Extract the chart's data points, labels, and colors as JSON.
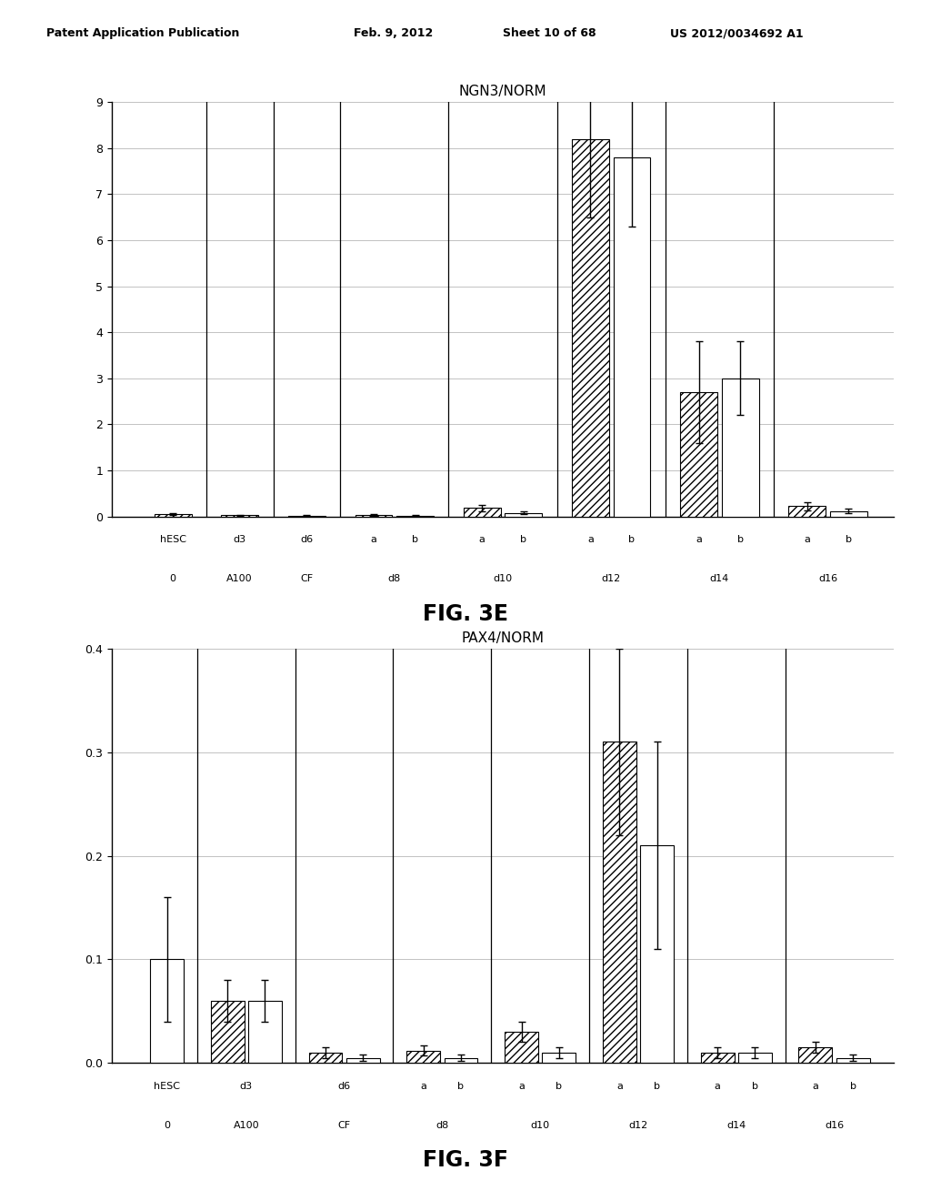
{
  "fig3e": {
    "title": "NGN3/NORM",
    "ylim": [
      0,
      9
    ],
    "yticks": [
      0,
      1,
      2,
      3,
      4,
      5,
      6,
      7,
      8,
      9
    ],
    "groups": [
      {
        "top_label": "hESC",
        "bot_label": "0",
        "n_bars": 1,
        "vals": [
          0.05
        ],
        "errs": [
          0.02
        ],
        "hatches": [
          true
        ]
      },
      {
        "top_label": "d3",
        "bot_label": "A100",
        "n_bars": 1,
        "vals": [
          0.03
        ],
        "errs": [
          0.01
        ],
        "hatches": [
          true
        ]
      },
      {
        "top_label": "d6",
        "bot_label": "CF",
        "n_bars": 1,
        "vals": [
          0.02
        ],
        "errs": [
          0.01
        ],
        "hatches": [
          true
        ]
      },
      {
        "top_label": "ab",
        "bot_label": "d8",
        "n_bars": 2,
        "vals": [
          0.03,
          0.02
        ],
        "errs": [
          0.02,
          0.01
        ],
        "hatches": [
          true,
          false
        ]
      },
      {
        "top_label": "ab",
        "bot_label": "d10",
        "n_bars": 2,
        "vals": [
          0.18,
          0.08
        ],
        "errs": [
          0.06,
          0.03
        ],
        "hatches": [
          true,
          false
        ]
      },
      {
        "top_label": "ab",
        "bot_label": "d12",
        "n_bars": 2,
        "vals": [
          8.2,
          7.8
        ],
        "errs": [
          1.7,
          1.5
        ],
        "hatches": [
          true,
          false
        ]
      },
      {
        "top_label": "ab",
        "bot_label": "d14",
        "n_bars": 2,
        "vals": [
          2.7,
          3.0
        ],
        "errs": [
          1.1,
          0.8
        ],
        "hatches": [
          true,
          false
        ]
      },
      {
        "top_label": "ab",
        "bot_label": "d16",
        "n_bars": 2,
        "vals": [
          0.22,
          0.12
        ],
        "errs": [
          0.08,
          0.05
        ],
        "hatches": [
          true,
          false
        ]
      }
    ]
  },
  "fig3f": {
    "title": "PAX4/NORM",
    "ylim": [
      0,
      0.4
    ],
    "yticks": [
      0.0,
      0.1,
      0.2,
      0.3,
      0.4
    ],
    "groups": [
      {
        "top_label": "hESC",
        "bot_label": "0",
        "n_bars": 1,
        "vals": [
          0.1
        ],
        "errs": [
          0.06
        ],
        "hatches": [
          false
        ]
      },
      {
        "top_label": "d3",
        "bot_label": "A100",
        "n_bars": 2,
        "vals": [
          0.06,
          0.06
        ],
        "errs": [
          0.02,
          0.02
        ],
        "hatches": [
          true,
          false
        ]
      },
      {
        "top_label": "d6",
        "bot_label": "CF",
        "n_bars": 2,
        "vals": [
          0.01,
          0.005
        ],
        "errs": [
          0.005,
          0.003
        ],
        "hatches": [
          true,
          false
        ]
      },
      {
        "top_label": "ab",
        "bot_label": "d8",
        "n_bars": 2,
        "vals": [
          0.012,
          0.005
        ],
        "errs": [
          0.005,
          0.003
        ],
        "hatches": [
          true,
          false
        ]
      },
      {
        "top_label": "ab",
        "bot_label": "d10",
        "n_bars": 2,
        "vals": [
          0.03,
          0.01
        ],
        "errs": [
          0.01,
          0.005
        ],
        "hatches": [
          true,
          false
        ]
      },
      {
        "top_label": "ab",
        "bot_label": "d12",
        "n_bars": 2,
        "vals": [
          0.31,
          0.21
        ],
        "errs": [
          0.09,
          0.1
        ],
        "hatches": [
          true,
          false
        ]
      },
      {
        "top_label": "ab",
        "bot_label": "d14",
        "n_bars": 2,
        "vals": [
          0.01,
          0.01
        ],
        "errs": [
          0.005,
          0.005
        ],
        "hatches": [
          true,
          false
        ]
      },
      {
        "top_label": "ab",
        "bot_label": "d16",
        "n_bars": 2,
        "vals": [
          0.015,
          0.005
        ],
        "errs": [
          0.005,
          0.003
        ],
        "hatches": [
          true,
          false
        ]
      }
    ]
  },
  "hatch_pattern": "////",
  "bar_color_hatch": "white",
  "bar_color_plain": "white",
  "bar_edgecolor": "black",
  "error_color": "black",
  "grid_color": "#aaaaaa",
  "header_line1": "Patent Application Publication",
  "header_line2": "Feb. 9, 2012",
  "header_line3": "Sheet 10 of 68",
  "header_line4": "US 2012/0034692 A1",
  "fig3e_caption": "FIG. 3E",
  "fig3f_caption": "FIG. 3F"
}
